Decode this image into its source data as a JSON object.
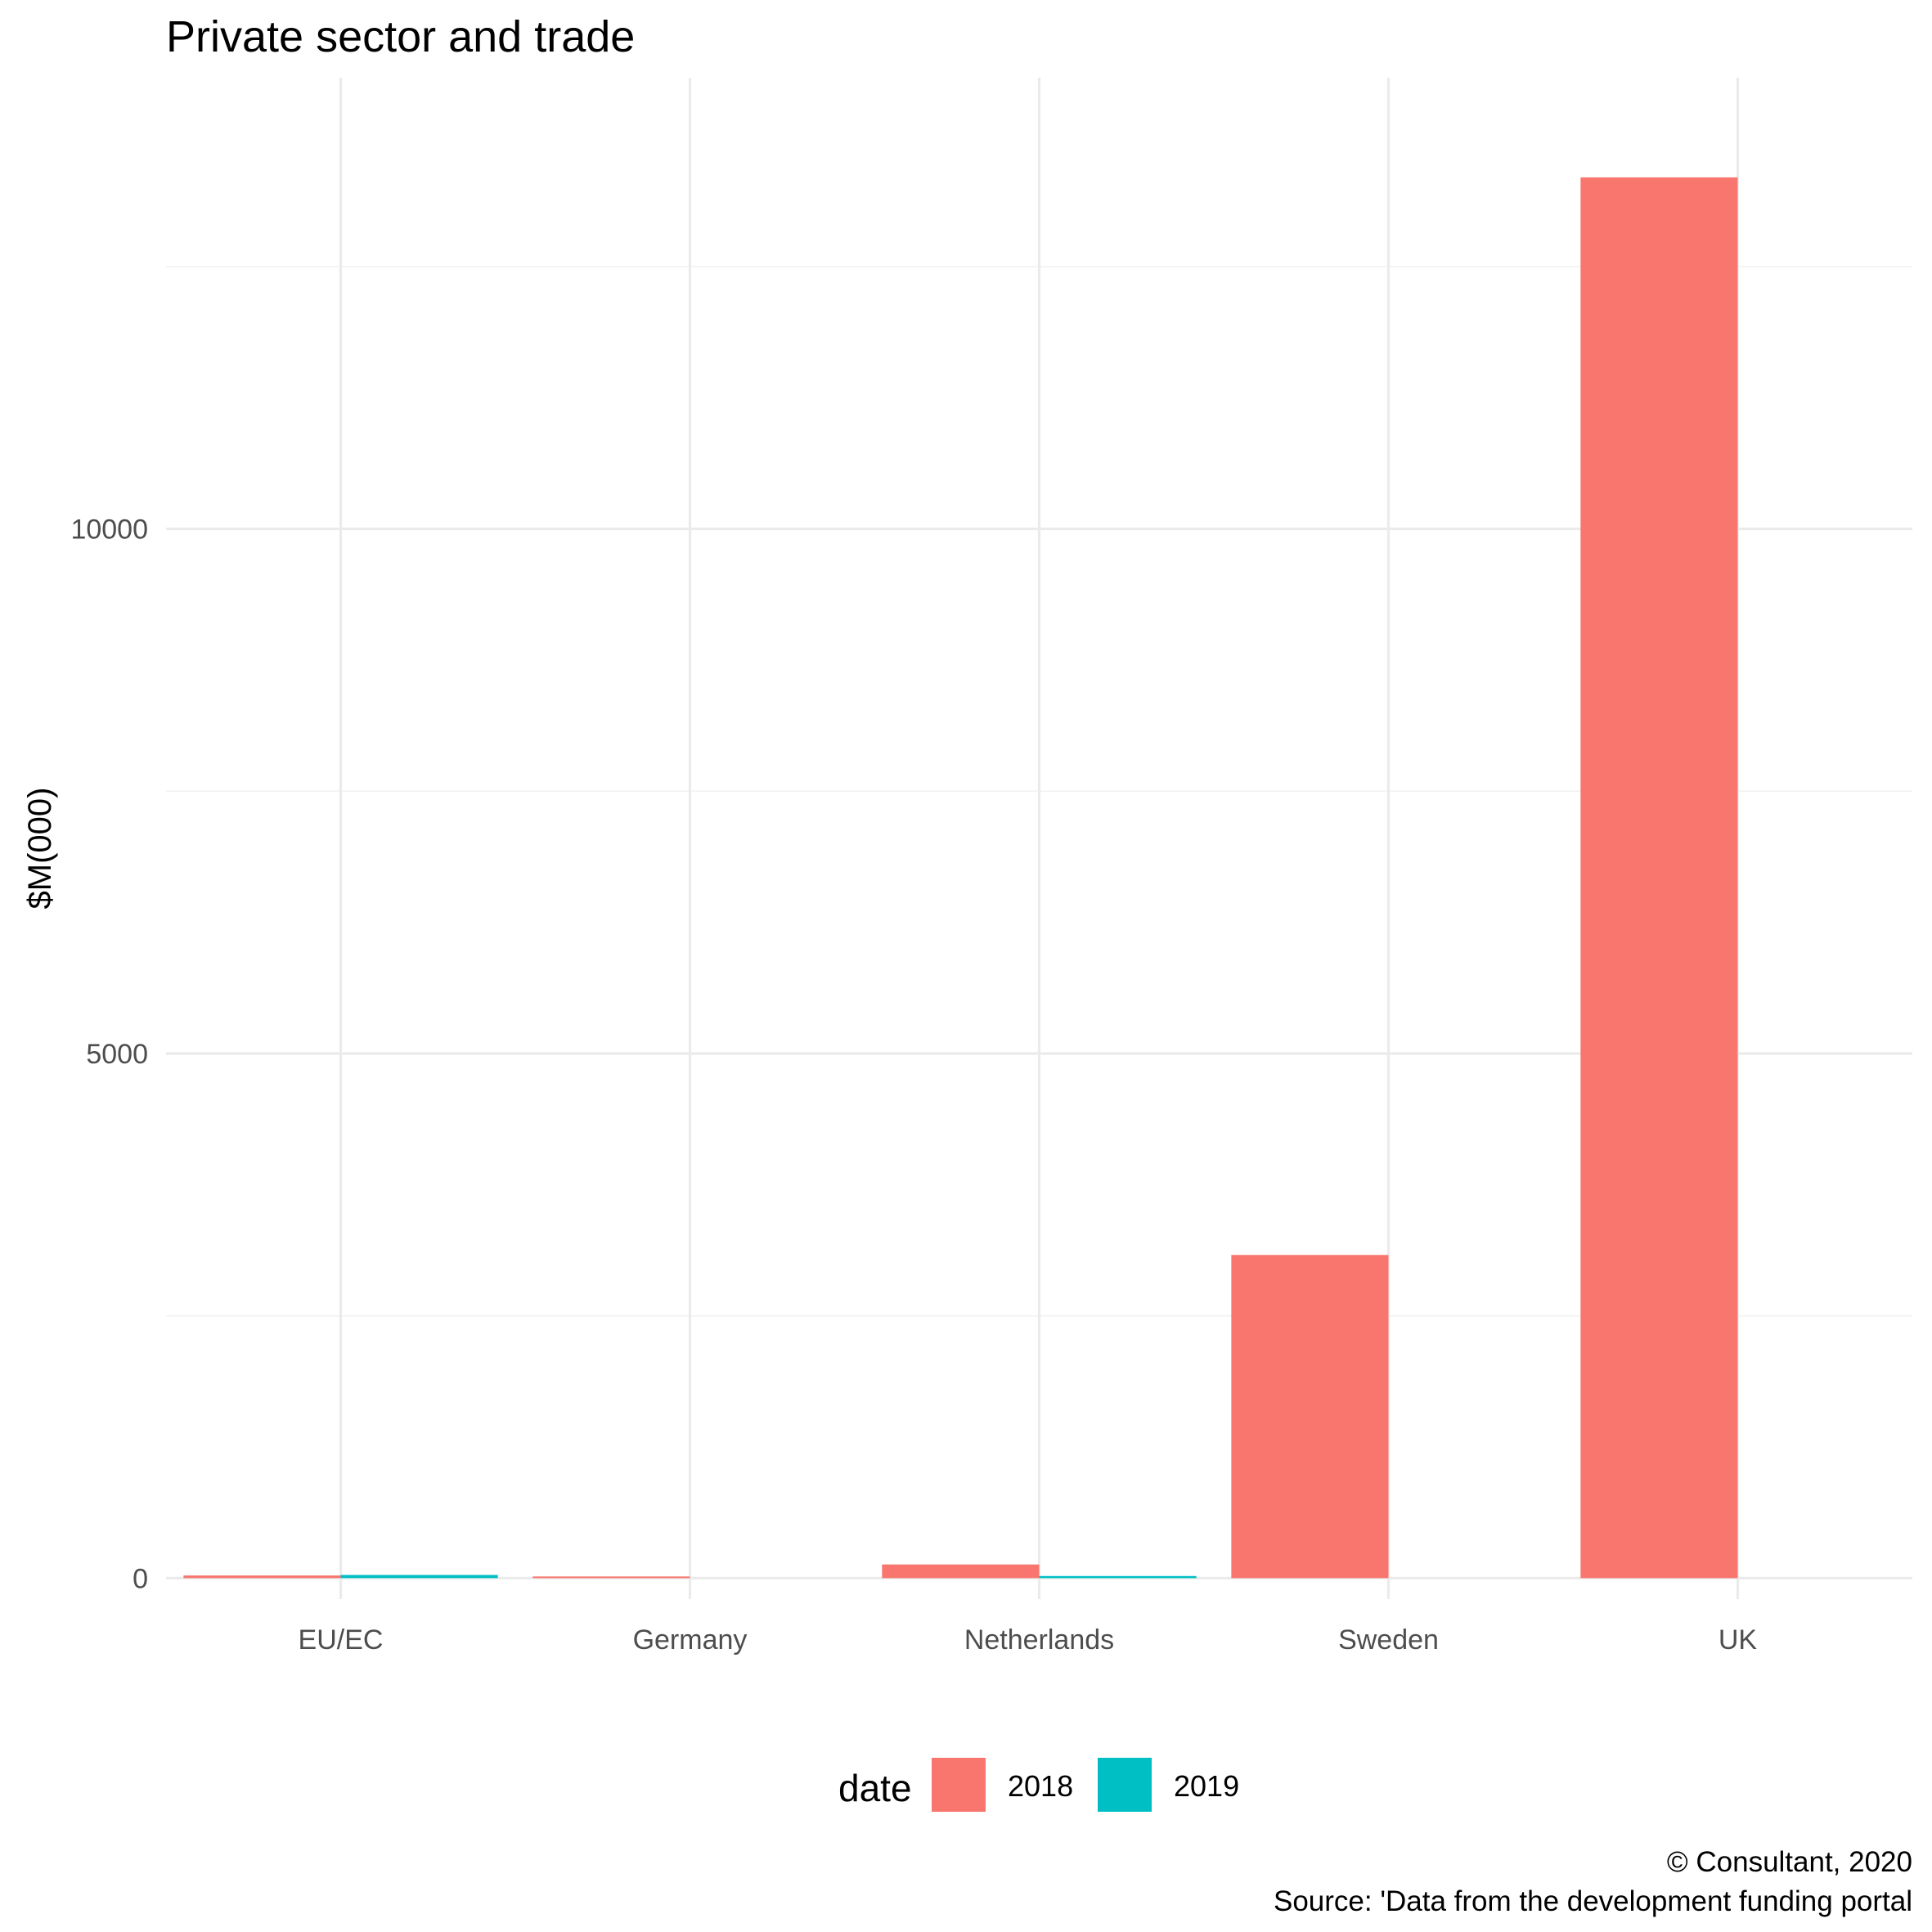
{
  "chart_data": {
    "type": "bar",
    "title": "Private sector and trade",
    "ylabel": "$M(000)",
    "xlabel": "",
    "categories": [
      "EU/EC",
      "Germany",
      "Netherlands",
      "Sweden",
      "UK"
    ],
    "series": [
      {
        "name": "2018",
        "values": [
          25,
          8,
          130,
          3080,
          13350
        ]
      },
      {
        "name": "2019",
        "values": [
          30,
          0,
          20,
          0,
          0
        ]
      }
    ],
    "ylim": [
      -200,
      14300
    ],
    "yticks": [
      0,
      5000,
      10000
    ],
    "yticks_labels": [
      "0",
      "5000",
      "10000"
    ],
    "grid": true,
    "legend": {
      "title": "date",
      "position": "bottom",
      "entries": [
        "2018",
        "2019"
      ]
    },
    "colors": {
      "2018": "#F8766D",
      "2019": "#00BFC4"
    },
    "caption": [
      "© Consultant, 2020",
      "Source: 'Data from the development funding portal"
    ]
  }
}
